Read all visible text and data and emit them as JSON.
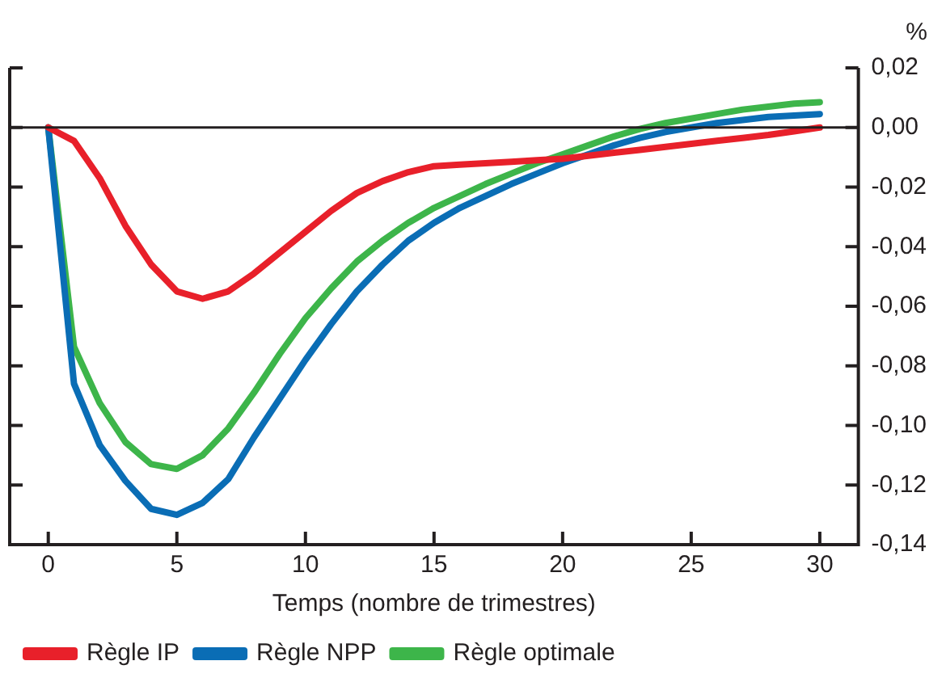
{
  "chart_data": {
    "type": "line",
    "xlabel": "Temps (nombre de trimestres)",
    "ylabel": "%",
    "x": [
      0,
      1,
      2,
      3,
      4,
      5,
      6,
      7,
      8,
      9,
      10,
      11,
      12,
      13,
      14,
      15,
      16,
      17,
      18,
      19,
      20,
      21,
      22,
      23,
      24,
      25,
      26,
      27,
      28,
      29,
      30
    ],
    "series": [
      {
        "name": "Règle IP",
        "color": "#e8202a",
        "values": [
          0,
          -0.0045,
          -0.017,
          -0.033,
          -0.046,
          -0.055,
          -0.0575,
          -0.055,
          -0.049,
          -0.042,
          -0.035,
          -0.028,
          -0.022,
          -0.018,
          -0.015,
          -0.013,
          -0.0125,
          -0.012,
          -0.0115,
          -0.011,
          -0.0105,
          -0.0095,
          -0.0085,
          -0.0075,
          -0.0065,
          -0.0055,
          -0.0045,
          -0.0035,
          -0.0025,
          -0.0013,
          0
        ]
      },
      {
        "name": "Règle NPP",
        "color": "#0a6db5",
        "values": [
          0,
          -0.086,
          -0.1066,
          -0.1186,
          -0.128,
          -0.13,
          -0.126,
          -0.118,
          -0.104,
          -0.091,
          -0.078,
          -0.066,
          -0.055,
          -0.046,
          -0.038,
          -0.032,
          -0.027,
          -0.023,
          -0.019,
          -0.0155,
          -0.012,
          -0.009,
          -0.006,
          -0.0035,
          -0.0015,
          0,
          0.0015,
          0.0025,
          0.0035,
          0.004,
          0.0045
        ]
      },
      {
        "name": "Règle optimale",
        "color": "#3db54a",
        "values": [
          0,
          -0.0736,
          -0.0925,
          -0.1056,
          -0.113,
          -0.1146,
          -0.11,
          -0.101,
          -0.089,
          -0.076,
          -0.064,
          -0.054,
          -0.045,
          -0.038,
          -0.032,
          -0.027,
          -0.023,
          -0.019,
          -0.0155,
          -0.012,
          -0.009,
          -0.006,
          -0.003,
          -0.0005,
          0.0015,
          0.003,
          0.0045,
          0.006,
          0.007,
          0.008,
          0.0085
        ]
      }
    ],
    "xlim": [
      -1.5,
      31.5
    ],
    "xticks": [
      0,
      5,
      10,
      15,
      20,
      25,
      30
    ],
    "ylim": [
      -0.14,
      0.02
    ],
    "yticks": [
      {
        "value": 0.02,
        "label": "0,02"
      },
      {
        "value": 0,
        "label": "0,00"
      },
      {
        "value": -0.02,
        "label": "-0,02"
      },
      {
        "value": -0.04,
        "label": "-0,04"
      },
      {
        "value": -0.06,
        "label": "-0,06"
      },
      {
        "value": -0.08,
        "label": "-0,08"
      },
      {
        "value": -0.1,
        "label": "-0,10"
      },
      {
        "value": -0.12,
        "label": "-0,12"
      },
      {
        "value": -0.14,
        "label": "-0,14"
      }
    ],
    "ref_lines": [
      {
        "axis": "y",
        "value": 0,
        "color": "#231f20"
      }
    ],
    "grid": false,
    "legend": "bottom",
    "marker": "none",
    "line_style": "solid"
  }
}
